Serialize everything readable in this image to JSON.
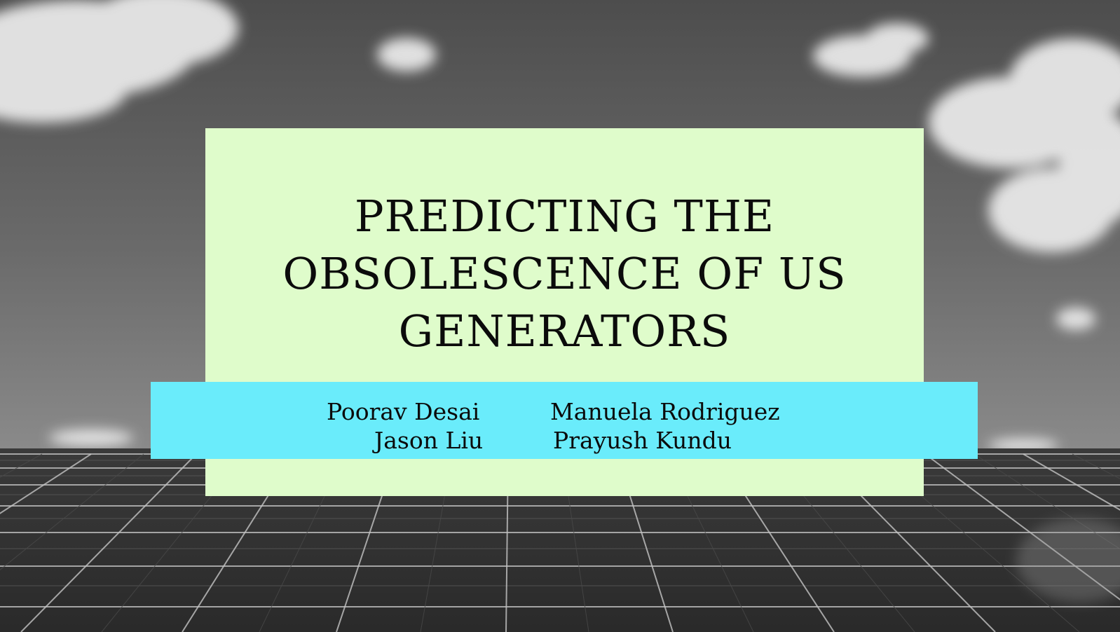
{
  "slide": {
    "title_lines": [
      "PREDICTING THE",
      "OBSOLESCENCE OF US",
      "GENERATORS"
    ],
    "authors": [
      "Poorav Desai",
      "Manuela Rodriguez",
      "Jason Liu",
      "Prayush Kundu"
    ]
  },
  "colors": {
    "title_card": "#dffccb",
    "names_band": "#6aecfb",
    "text": "#0b0b0b"
  },
  "background": {
    "image": "grayscale photo of solar panels under a cloudy sky"
  }
}
